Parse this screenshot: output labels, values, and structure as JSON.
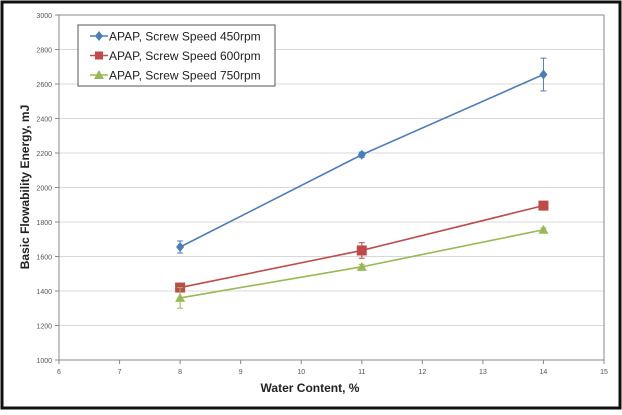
{
  "chart_data": {
    "type": "line",
    "title": "",
    "xlabel": "Water Content, %",
    "ylabel": "Basic Flowability Energy, mJ",
    "xlim": [
      6,
      15
    ],
    "ylim": [
      1000,
      3000
    ],
    "xticks": [
      6,
      7,
      8,
      9,
      10,
      11,
      12,
      13,
      14,
      15
    ],
    "yticks": [
      1000,
      1200,
      1400,
      1600,
      1800,
      2000,
      2200,
      2400,
      2600,
      2800,
      3000
    ],
    "grid": "horizontal",
    "legend_position": "top-left",
    "x": [
      8,
      11,
      14
    ],
    "series": [
      {
        "name": "APAP, Screw Speed 450rpm",
        "values": [
          1655,
          2190,
          2655
        ],
        "errors": [
          35,
          15,
          95
        ],
        "color": "#4a7ebb",
        "marker": "diamond"
      },
      {
        "name": "APAP, Screw Speed 600rpm",
        "values": [
          1420,
          1635,
          1895
        ],
        "errors": [
          15,
          45,
          15
        ],
        "color": "#be4b48",
        "marker": "square"
      },
      {
        "name": "APAP, Screw Speed 750rpm",
        "values": [
          1360,
          1540,
          1755
        ],
        "errors": [
          60,
          15,
          10
        ],
        "color": "#98b954",
        "marker": "triangle"
      }
    ]
  }
}
